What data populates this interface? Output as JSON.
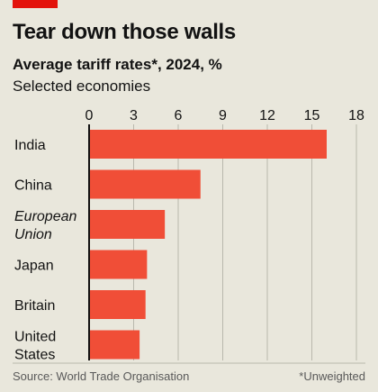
{
  "header": {
    "title": "Tear down those walls",
    "subtitle": "Average tariff rates*, 2024, %",
    "subsubtitle": "Selected economies"
  },
  "footer": {
    "source": "Source: World Trade Organisation",
    "note": "*Unweighted"
  },
  "colors": {
    "accent": "#e3120b",
    "bar": "#f04e37",
    "grid": "#b9b8ad",
    "background": "#e9e7dc"
  },
  "chart_data": {
    "type": "bar",
    "orientation": "horizontal",
    "title": "Tear down those walls",
    "subtitle": "Average tariff rates*, 2024, %",
    "categories": [
      {
        "label": [
          "India"
        ],
        "italic": false
      },
      {
        "label": [
          "China"
        ],
        "italic": false
      },
      {
        "label": [
          "European",
          "Union"
        ],
        "italic": true
      },
      {
        "label": [
          "Japan"
        ],
        "italic": false
      },
      {
        "label": [
          "Britain"
        ],
        "italic": false
      },
      {
        "label": [
          "United",
          "States"
        ],
        "italic": false
      }
    ],
    "values": [
      16.0,
      7.5,
      5.1,
      3.9,
      3.8,
      3.4
    ],
    "xlim": [
      0,
      18
    ],
    "xticks": [
      "0",
      "3",
      "6",
      "9",
      "12",
      "15",
      "18"
    ],
    "grid": true,
    "xlabel": "",
    "ylabel": ""
  }
}
